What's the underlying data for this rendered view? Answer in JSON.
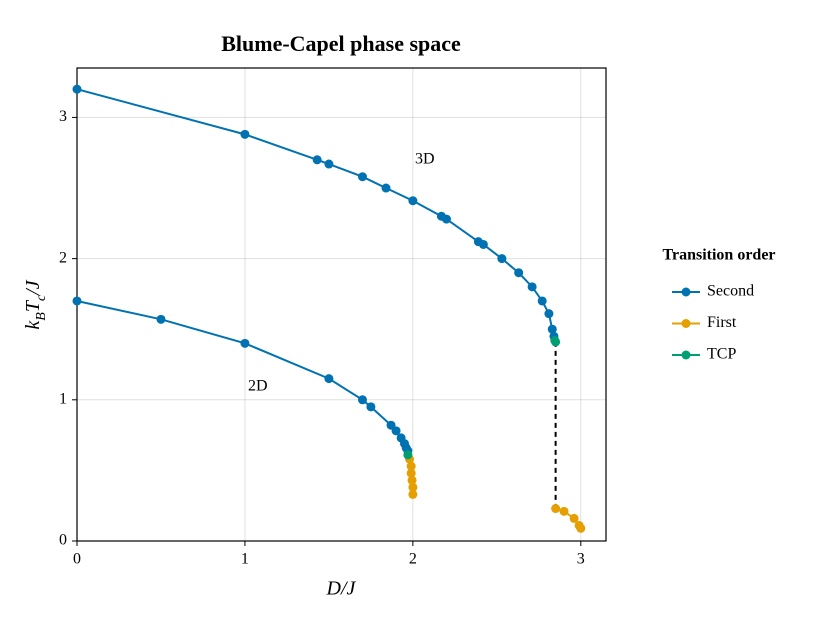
{
  "chart_data": {
    "type": "line",
    "title": "Blume-Capel phase space",
    "x_label": "D/J",
    "y_label": [
      "k",
      "B",
      "T",
      "c",
      "/J"
    ],
    "xlim": [
      0,
      3.15
    ],
    "ylim": [
      0,
      3.35
    ],
    "xticks": [
      0,
      1,
      2,
      3
    ],
    "yticks": [
      0,
      1,
      2,
      3
    ],
    "grid": true,
    "legend": "right",
    "legend_title": "Transition order",
    "annotations": [
      "3D",
      "2D"
    ],
    "series": [
      {
        "name": "Second",
        "color": "#0072b2",
        "x": [
          0,
          1,
          1.43,
          1.5,
          1.7,
          1.84,
          2.0,
          2.17,
          2.2,
          2.39,
          2.42,
          2.53,
          2.63,
          2.71,
          2.77,
          2.81,
          2.83,
          2.84,
          null,
          0,
          0.5,
          1.0,
          1.5,
          1.7,
          1.75,
          1.87,
          1.9,
          1.93,
          1.95,
          1.96,
          1.97
        ],
        "y": [
          3.2,
          2.88,
          2.7,
          2.67,
          2.58,
          2.5,
          2.41,
          2.3,
          2.28,
          2.12,
          2.1,
          2.0,
          1.9,
          1.8,
          1.7,
          1.61,
          1.5,
          1.45,
          null,
          1.7,
          1.57,
          1.4,
          1.15,
          1.0,
          0.95,
          0.82,
          0.78,
          0.73,
          0.69,
          0.66,
          0.64
        ]
      },
      {
        "name": "First",
        "color": "#e69f00",
        "x": [
          2.85,
          2.9,
          2.96,
          2.99,
          3.0,
          null,
          1.98,
          1.99,
          1.99,
          1.995,
          2.0,
          2.0
        ],
        "y": [
          0.23,
          0.21,
          0.16,
          0.11,
          0.09,
          null,
          0.58,
          0.53,
          0.48,
          0.43,
          0.38,
          0.33
        ]
      },
      {
        "name": "TCP",
        "color": "#009e73",
        "x": [
          2.845,
          2.85,
          null,
          1.97
        ],
        "y": [
          1.42,
          1.41,
          null,
          0.61
        ]
      }
    ],
    "connector": {
      "x": [
        2.85,
        2.85
      ],
      "y": [
        1.41,
        0.23
      ],
      "color": "#000000"
    }
  }
}
